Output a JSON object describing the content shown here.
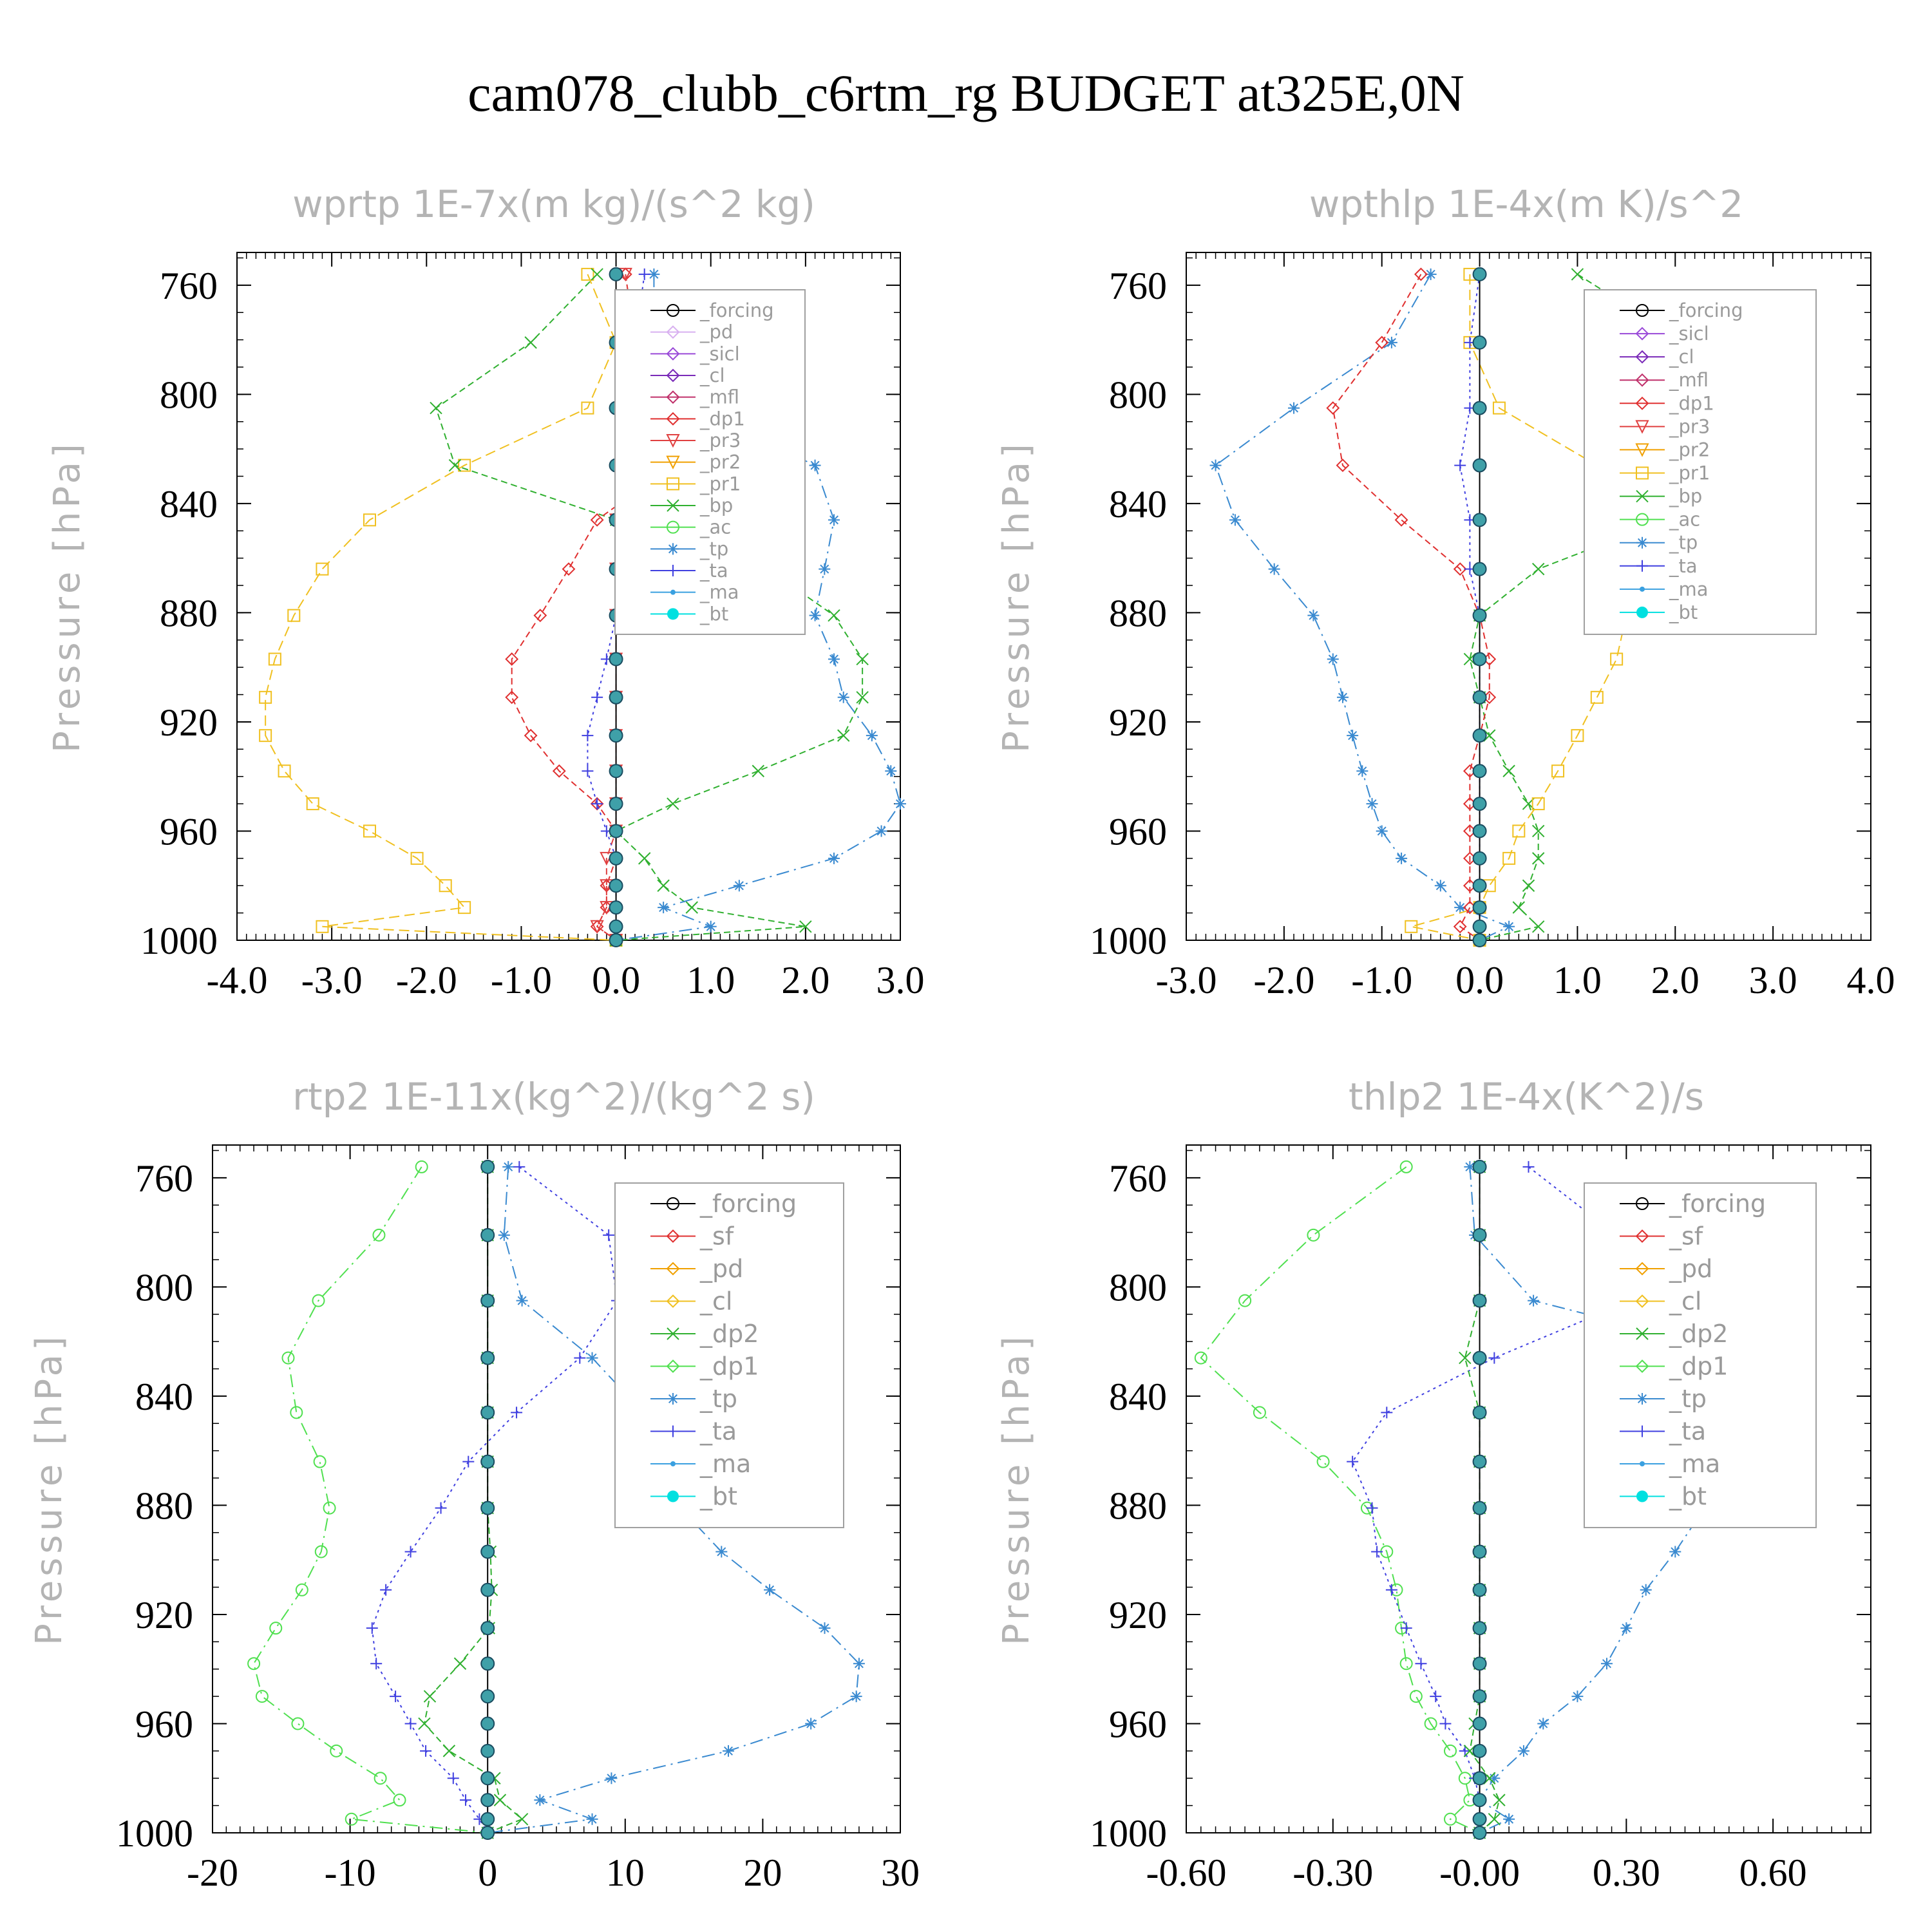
{
  "figure": {
    "title": "cam078_clubb_c6rtm_rg  BUDGET at325E,0N"
  },
  "colors": {
    "forcing": "#000000",
    "pd": "#d8b0f0",
    "sicl": "#9a4ad8",
    "cl": "#7a2ab8",
    "mfl": "#c0306a",
    "dp1": "#e03030",
    "pr3": "#e04040",
    "pr2": "#f0a000",
    "pr1": "#f0c020",
    "bp": "#30b030",
    "ac": "#50e050",
    "tp": "#3a8ad0",
    "ta": "#4040e0",
    "ma": "#3aa0e0",
    "bt": "#00e0e0",
    "sf": "#e03030",
    "dp2": "#30b030"
  },
  "chart_data": [
    {
      "type": "line",
      "title": "wprtp  1E-7x(m kg)/(s^2 kg)",
      "ylabel": "Pressure [hPa]",
      "xlim": [
        -4.0,
        3.0
      ],
      "xticks": [
        -4.0,
        -3.0,
        -2.0,
        -1.0,
        0.0,
        1.0,
        2.0,
        3.0
      ],
      "xtick_labels": [
        "-4.0",
        "-3.0",
        "-2.0",
        "-1.0",
        "0.0",
        "1.0",
        "2.0",
        "3.0"
      ],
      "ylim": [
        1000,
        748
      ],
      "yticks": [
        760,
        800,
        840,
        880,
        920,
        960,
        1000
      ],
      "ytick_labels": [
        "760",
        "800",
        "840",
        "880",
        "920",
        "960",
        "1000"
      ],
      "pressure": [
        756,
        781,
        805,
        826,
        846,
        864,
        881,
        897,
        911,
        925,
        938,
        950,
        960,
        970,
        980,
        988,
        995,
        1000
      ],
      "legend": [
        "_forcing",
        "_pd",
        "_sicl",
        "_cl",
        "_mfl",
        "_dp1",
        "_pr3",
        "_pr2",
        "_pr1",
        "_bp",
        "_ac",
        "_tp",
        "_ta",
        "_ma",
        "_bt"
      ],
      "series": [
        {
          "name": "_pr1",
          "key": "pr1",
          "dash": "16,8",
          "values": [
            -0.3,
            0.0,
            -0.3,
            -1.6,
            -2.6,
            -3.1,
            -3.4,
            -3.6,
            -3.7,
            -3.7,
            -3.5,
            -3.2,
            -2.6,
            -2.1,
            -1.8,
            -1.6,
            -3.1,
            0.0
          ]
        },
        {
          "name": "_bp",
          "key": "bp",
          "dash": "10,6",
          "values": [
            -0.2,
            -0.9,
            -1.9,
            -1.7,
            0.0,
            1.6,
            2.3,
            2.6,
            2.6,
            2.4,
            1.5,
            0.6,
            0.0,
            0.3,
            0.5,
            0.8,
            2.0,
            0.0
          ]
        },
        {
          "name": "_tp",
          "key": "tp",
          "dash": "20,8,3,8",
          "values": [
            0.4,
            0.4,
            0.8,
            2.1,
            2.3,
            2.2,
            2.1,
            2.3,
            2.4,
            2.7,
            2.9,
            3.0,
            2.8,
            2.3,
            1.3,
            0.5,
            1.0,
            0.0
          ]
        },
        {
          "name": "_dp1",
          "key": "dp1",
          "dash": "10,6",
          "values": [
            0.1,
            0.2,
            0.5,
            0.6,
            -0.2,
            -0.5,
            -0.8,
            -1.1,
            -1.1,
            -0.9,
            -0.6,
            -0.2,
            0.0,
            0.0,
            -0.1,
            -0.1,
            -0.2,
            0.0
          ]
        },
        {
          "name": "_ta",
          "key": "ta",
          "dash": "4,6",
          "values": [
            0.3,
            0.2,
            0.1,
            0.2,
            0.2,
            0.1,
            0.0,
            -0.1,
            -0.2,
            -0.3,
            -0.3,
            -0.2,
            -0.1,
            0.0,
            0.0,
            0.0,
            0.0,
            0.0
          ]
        },
        {
          "name": "_pr3",
          "key": "pr3",
          "dash": "10,6",
          "values": [
            0.1,
            0.2,
            0.1,
            0.1,
            0.0,
            0.0,
            0.0,
            0.0,
            0.0,
            0.0,
            0.0,
            0.0,
            0.0,
            -0.1,
            -0.1,
            -0.1,
            -0.2,
            0.0
          ]
        },
        {
          "name": "_forcing",
          "key": "forcing",
          "dash": "",
          "values": [
            0.0,
            0.0,
            0.0,
            0.0,
            0.0,
            0.0,
            0.0,
            0.0,
            0.0,
            0.0,
            0.0,
            0.0,
            0.0,
            0.0,
            0.0,
            0.0,
            0.0,
            0.0
          ]
        }
      ]
    },
    {
      "type": "line",
      "title": "wpthlp  1E-4x(m K)/s^2",
      "ylabel": "Pressure [hPa]",
      "xlim": [
        -3.0,
        4.0
      ],
      "xticks": [
        -3.0,
        -2.0,
        -1.0,
        0.0,
        1.0,
        2.0,
        3.0,
        4.0
      ],
      "xtick_labels": [
        "-3.0",
        "-2.0",
        "-1.0",
        "0.0",
        "1.0",
        "2.0",
        "3.0",
        "4.0"
      ],
      "ylim": [
        1000,
        748
      ],
      "yticks": [
        760,
        800,
        840,
        880,
        920,
        960,
        1000
      ],
      "ytick_labels": [
        "760",
        "800",
        "840",
        "880",
        "920",
        "960",
        "1000"
      ],
      "pressure": [
        756,
        781,
        805,
        826,
        846,
        864,
        881,
        897,
        911,
        925,
        938,
        950,
        960,
        970,
        980,
        988,
        995,
        1000
      ],
      "legend": [
        "_forcing",
        "_sicl",
        "_cl",
        "_mfl",
        "_dp1",
        "_pr3",
        "_pr2",
        "_pr1",
        "_bp",
        "_ac",
        "_tp",
        "_ta",
        "_ma",
        "_bt"
      ],
      "series": [
        {
          "name": "_tp",
          "key": "tp",
          "dash": "20,8,3,8",
          "values": [
            -0.5,
            -0.9,
            -1.9,
            -2.7,
            -2.5,
            -2.1,
            -1.7,
            -1.5,
            -1.4,
            -1.3,
            -1.2,
            -1.1,
            -1.0,
            -0.8,
            -0.4,
            -0.2,
            0.3,
            0.0
          ]
        },
        {
          "name": "_bp",
          "key": "bp",
          "dash": "10,6",
          "values": [
            1.0,
            2.1,
            3.3,
            3.1,
            1.9,
            0.6,
            0.0,
            -0.1,
            0.0,
            0.1,
            0.3,
            0.5,
            0.6,
            0.6,
            0.5,
            0.4,
            0.6,
            0.0
          ]
        },
        {
          "name": "_pr1",
          "key": "pr1",
          "dash": "16,8",
          "values": [
            -0.1,
            -0.1,
            0.2,
            1.2,
            1.6,
            1.6,
            1.5,
            1.4,
            1.2,
            1.0,
            0.8,
            0.6,
            0.4,
            0.3,
            0.1,
            0.0,
            -0.7,
            0.0
          ]
        },
        {
          "name": "_dp1",
          "key": "dp1",
          "dash": "10,6",
          "values": [
            -0.6,
            -1.0,
            -1.5,
            -1.4,
            -0.8,
            -0.2,
            0.0,
            0.1,
            0.1,
            0.0,
            -0.1,
            -0.1,
            -0.1,
            -0.1,
            -0.1,
            -0.1,
            -0.2,
            0.0
          ]
        },
        {
          "name": "_ta",
          "key": "ta",
          "dash": "4,6",
          "values": [
            0.0,
            -0.1,
            -0.1,
            -0.2,
            -0.1,
            -0.1,
            0.0,
            0.0,
            0.0,
            0.0,
            0.0,
            0.0,
            0.0,
            0.0,
            0.0,
            0.0,
            0.0,
            0.0
          ]
        },
        {
          "name": "_forcing",
          "key": "forcing",
          "dash": "",
          "values": [
            0.0,
            0.0,
            0.0,
            0.0,
            0.0,
            0.0,
            0.0,
            0.0,
            0.0,
            0.0,
            0.0,
            0.0,
            0.0,
            0.0,
            0.0,
            0.0,
            0.0,
            0.0
          ]
        }
      ]
    },
    {
      "type": "line",
      "title": "rtp2  1E-11x(kg^2)/(kg^2 s)",
      "ylabel": "Pressure [hPa]",
      "xlim": [
        -20,
        30
      ],
      "xticks": [
        -20,
        -10,
        0,
        10,
        20,
        30
      ],
      "xtick_labels": [
        "-20",
        "-10",
        "0",
        "10",
        "20",
        "30"
      ],
      "ylim": [
        1000,
        748
      ],
      "yticks": [
        760,
        800,
        840,
        880,
        920,
        960,
        1000
      ],
      "ytick_labels": [
        "760",
        "800",
        "840",
        "880",
        "920",
        "960",
        "1000"
      ],
      "pressure": [
        756,
        781,
        805,
        826,
        846,
        864,
        881,
        897,
        911,
        925,
        938,
        950,
        960,
        970,
        980,
        988,
        995,
        1000
      ],
      "legend": [
        "_forcing",
        "_sf",
        "_pd",
        "_cl",
        "_dp2",
        "_dp1",
        "_tp",
        "_ta",
        "_ma",
        "_bt"
      ],
      "series": [
        {
          "name": "_dp1",
          "key": "ac",
          "dash": "20,8,3,8",
          "values": [
            -4.8,
            -7.9,
            -12.3,
            -14.5,
            -13.9,
            -12.2,
            -11.5,
            -12.1,
            -13.5,
            -15.4,
            -17.0,
            -16.4,
            -13.8,
            -11.0,
            -7.8,
            -6.4,
            -9.9,
            0.0
          ]
        },
        {
          "name": "_dp2",
          "key": "dp2",
          "dash": "10,6",
          "values": [
            0.0,
            0.0,
            0.0,
            0.0,
            0.0,
            0.0,
            0.0,
            0.2,
            0.3,
            0.1,
            -2.0,
            -4.2,
            -4.6,
            -2.8,
            0.5,
            0.9,
            2.5,
            0.0
          ]
        },
        {
          "name": "_tp",
          "key": "tp",
          "dash": "20,8,3,8",
          "values": [
            1.5,
            1.2,
            2.5,
            7.6,
            11.3,
            12.8,
            14.0,
            17.0,
            20.5,
            24.5,
            27.0,
            26.8,
            23.5,
            17.5,
            9.0,
            3.8,
            7.6,
            0.0
          ]
        },
        {
          "name": "_ta",
          "key": "ta",
          "dash": "4,6",
          "values": [
            2.3,
            8.8,
            9.4,
            6.7,
            2.1,
            -1.4,
            -3.4,
            -5.6,
            -7.4,
            -8.4,
            -8.1,
            -6.7,
            -5.6,
            -4.5,
            -2.5,
            -1.6,
            -0.6,
            0.0
          ]
        },
        {
          "name": "_forcing",
          "key": "forcing",
          "dash": "",
          "values": [
            0,
            0,
            0,
            0,
            0,
            0,
            0,
            0,
            0,
            0,
            0,
            0,
            0,
            0,
            0,
            0,
            0,
            0
          ]
        }
      ]
    },
    {
      "type": "line",
      "title": "thlp2  1E-4x(K^2)/s",
      "ylabel": "Pressure [hPa]",
      "xlim": [
        -0.6,
        0.8
      ],
      "xticks": [
        -0.6,
        -0.3,
        0.0,
        0.3,
        0.6
      ],
      "xtick_labels": [
        "-0.60",
        "-0.30",
        "-0.00",
        "0.30",
        "0.60"
      ],
      "ylim": [
        1000,
        748
      ],
      "yticks": [
        760,
        800,
        840,
        880,
        920,
        960,
        1000
      ],
      "ytick_labels": [
        "760",
        "800",
        "840",
        "880",
        "920",
        "960",
        "1000"
      ],
      "pressure": [
        756,
        781,
        805,
        826,
        846,
        864,
        881,
        897,
        911,
        925,
        938,
        950,
        960,
        970,
        980,
        988,
        995,
        1000
      ],
      "legend": [
        "_forcing",
        "_sf",
        "_pd",
        "_cl",
        "_dp2",
        "_dp1",
        "_tp",
        "_ta",
        "_ma",
        "_bt"
      ],
      "series": [
        {
          "name": "_dp1",
          "key": "ac",
          "dash": "20,8,3,8",
          "values": [
            -0.15,
            -0.34,
            -0.48,
            -0.57,
            -0.45,
            -0.32,
            -0.23,
            -0.19,
            -0.17,
            -0.16,
            -0.15,
            -0.13,
            -0.1,
            -0.06,
            -0.03,
            -0.02,
            -0.06,
            0.0
          ]
        },
        {
          "name": "_tp",
          "key": "tp",
          "dash": "20,8,3,8",
          "values": [
            -0.02,
            -0.01,
            0.11,
            0.57,
            0.65,
            0.56,
            0.46,
            0.4,
            0.34,
            0.3,
            0.26,
            0.2,
            0.13,
            0.09,
            0.03,
            0.0,
            0.06,
            0.0
          ]
        },
        {
          "name": "_ta",
          "key": "ta",
          "dash": "4,6",
          "values": [
            0.1,
            0.28,
            0.31,
            0.03,
            -0.19,
            -0.26,
            -0.22,
            -0.21,
            -0.18,
            -0.15,
            -0.12,
            -0.09,
            -0.07,
            -0.03,
            -0.01,
            0.0,
            0.0,
            0.0
          ]
        },
        {
          "name": "_dp2",
          "key": "dp2",
          "dash": "10,6",
          "values": [
            0.0,
            0.0,
            0.0,
            -0.03,
            0.0,
            0.0,
            0.0,
            0.0,
            0.0,
            0.0,
            0.0,
            0.0,
            -0.01,
            -0.02,
            0.02,
            0.04,
            0.03,
            0.0
          ]
        },
        {
          "name": "_forcing",
          "key": "forcing",
          "dash": "",
          "values": [
            0,
            0,
            0,
            0,
            0,
            0,
            0,
            0,
            0,
            0,
            0,
            0,
            0,
            0,
            0,
            0,
            0,
            0
          ]
        }
      ]
    }
  ]
}
